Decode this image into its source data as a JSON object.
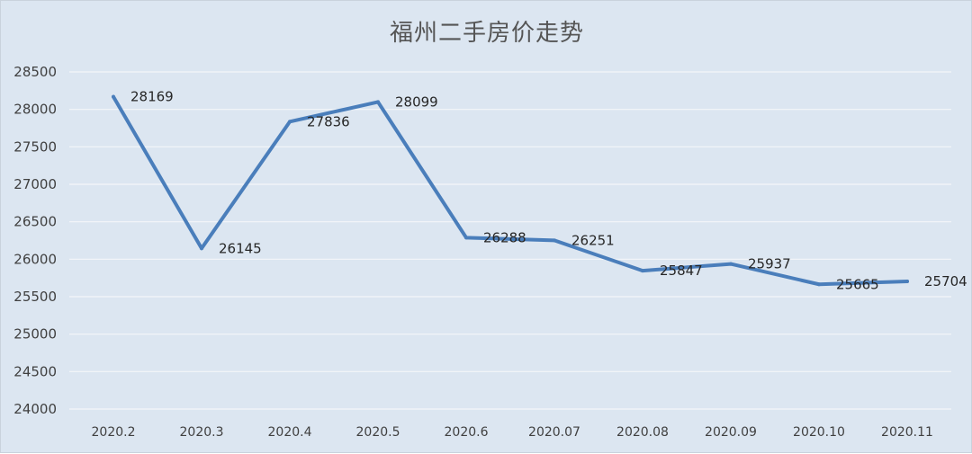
{
  "chart_data": {
    "type": "line",
    "title": "福州二手房价走势",
    "xlabel": "",
    "ylabel": "",
    "categories": [
      "2020.2",
      "2020.3",
      "2020.4",
      "2020.5",
      "2020.6",
      "2020.07",
      "2020.08",
      "2020.09",
      "2020.10",
      "2020.11"
    ],
    "series": [
      {
        "values": [
          28169,
          26145,
          27836,
          28099,
          26288,
          26251,
          25847,
          25937,
          25665,
          25704
        ]
      }
    ],
    "ylim": [
      24000,
      28500
    ],
    "yticks": [
      24000,
      24500,
      25000,
      25500,
      26000,
      26500,
      27000,
      27500,
      28000,
      28500
    ],
    "grid": true,
    "legend": "none",
    "colors": {
      "line": "#4a7ebb",
      "background": "#dce6f1",
      "gridline": "#f4f6f9"
    }
  }
}
